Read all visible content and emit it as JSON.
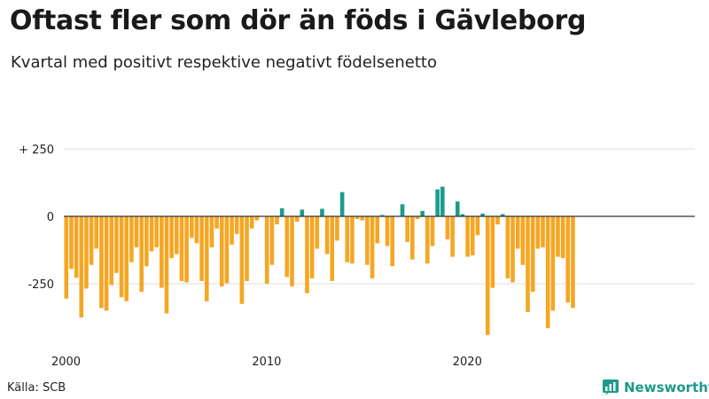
{
  "title": "Oftast fler som dör än föds i Gävleborg",
  "subtitle": "Kvartal med positivt respektive negativt födelsenetto",
  "source": "Källa: SCB",
  "brand": {
    "name": "Newsworthy",
    "icon": "newsworthy-logo-icon"
  },
  "colors": {
    "positive": "#1a9c8c",
    "negative": "#f5a623",
    "zero_line": "#333333",
    "grid": "#dddddd"
  },
  "chart_data": {
    "type": "bar",
    "title": "Oftast fler som dör än föds i Gävleborg",
    "subtitle": "Kvartal med positivt respektive negativt födelsenetto",
    "xlabel": "",
    "ylabel": "",
    "ylim": [
      -440,
      250
    ],
    "yticks": [
      {
        "value": 250,
        "label": "+ 250"
      },
      {
        "value": 0,
        "label": "0"
      },
      {
        "value": -250,
        "label": "-250"
      }
    ],
    "xticks": [
      {
        "index": 0,
        "label": "2000"
      },
      {
        "index": 40,
        "label": "2010"
      },
      {
        "index": 80,
        "label": "2020"
      }
    ],
    "grid": true,
    "period": "Kvartal 2000–2024",
    "values": [
      -305,
      -195,
      -228,
      -375,
      -268,
      -180,
      -120,
      -340,
      -350,
      -255,
      -210,
      -300,
      -315,
      -170,
      -115,
      -280,
      -185,
      -130,
      -115,
      -265,
      -360,
      -155,
      -140,
      -240,
      -245,
      -80,
      -100,
      -240,
      -315,
      -115,
      -45,
      -260,
      -248,
      -105,
      -65,
      -325,
      -240,
      -45,
      -15,
      0,
      -250,
      -180,
      -30,
      30,
      -225,
      -260,
      -20,
      25,
      -285,
      -230,
      -120,
      28,
      -140,
      -240,
      -90,
      90,
      -170,
      -175,
      -10,
      -15,
      -180,
      -230,
      -100,
      5,
      -110,
      -185,
      0,
      45,
      -95,
      -160,
      -10,
      20,
      -175,
      -110,
      100,
      110,
      -85,
      -150,
      55,
      8,
      -150,
      -145,
      -70,
      10,
      -440,
      -265,
      -30,
      8,
      -230,
      -245,
      -120,
      -180,
      -355,
      -280,
      -120,
      -115,
      -415,
      -350,
      -150,
      -155,
      -320,
      -340
    ]
  }
}
